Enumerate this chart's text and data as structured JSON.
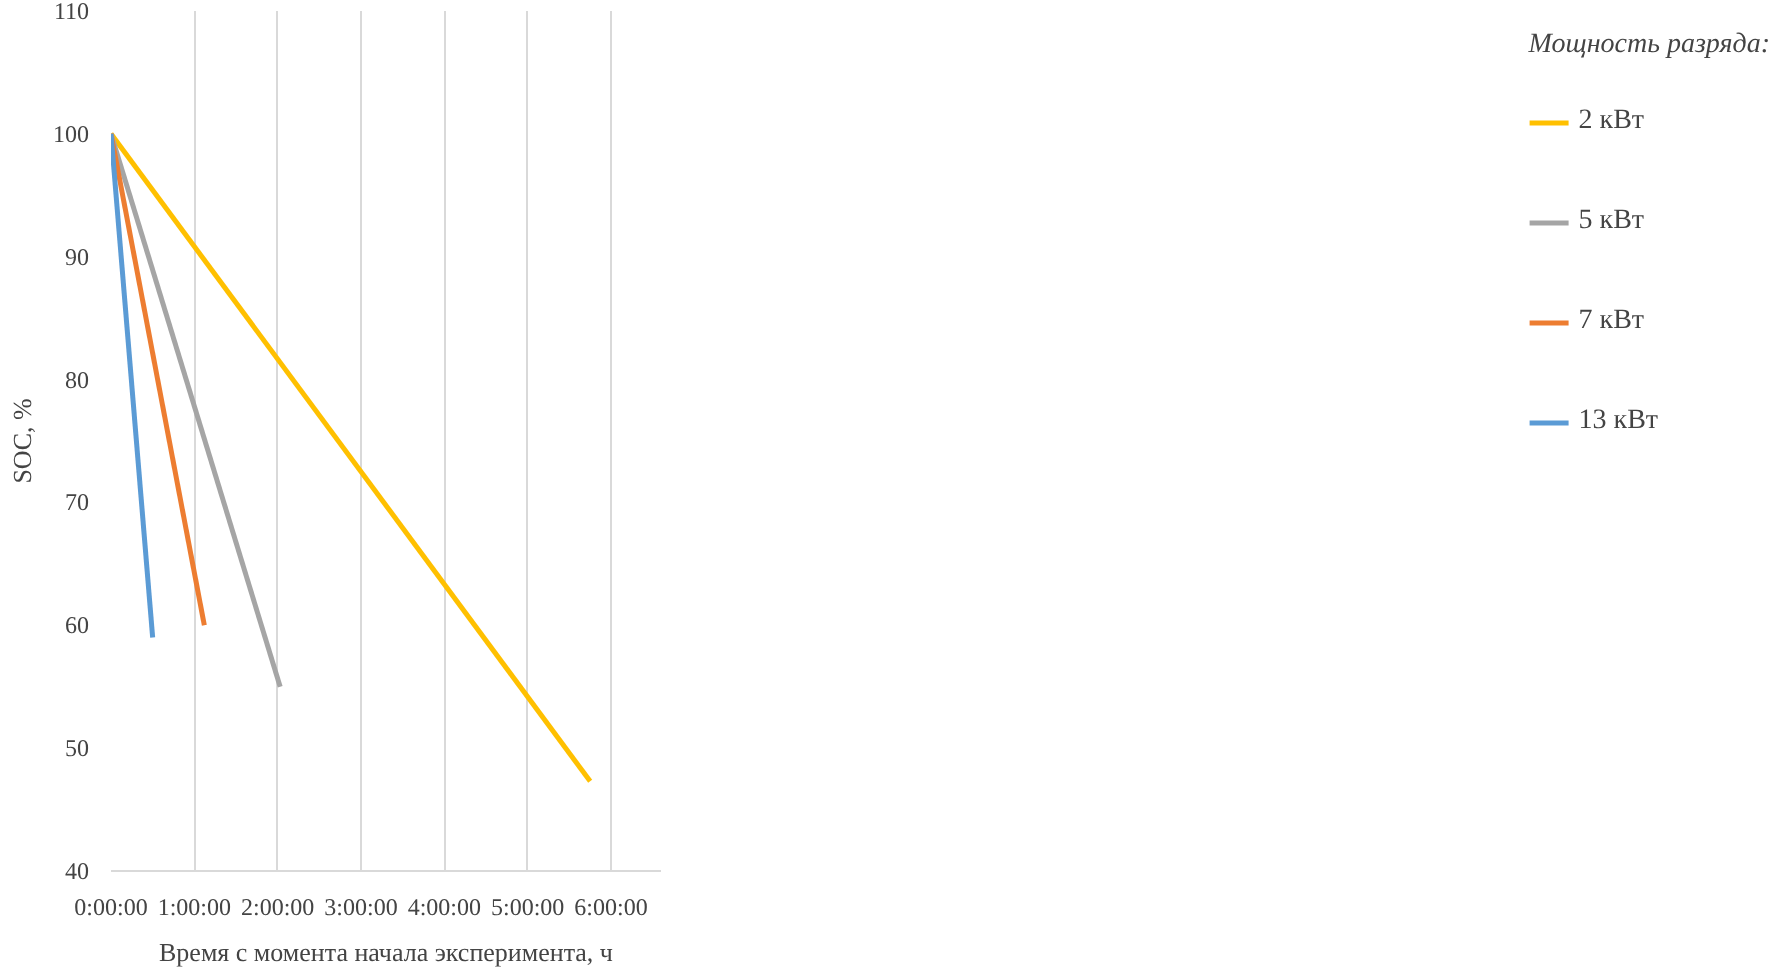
{
  "chart_data": {
    "type": "line",
    "xlabel": "Время с момента начала эксперимента, ч",
    "ylabel": "SOC, %",
    "legend_title": "Мощность разряда:",
    "series": [
      {
        "name": "2 кВт",
        "color": "#ffc000",
        "x": [
          0,
          5.75
        ],
        "values": [
          100,
          47.3
        ]
      },
      {
        "name": "5 кВт",
        "color": "#a5a5a5",
        "x": [
          0,
          2.03
        ],
        "values": [
          100,
          55
        ]
      },
      {
        "name": "7 кВт",
        "color": "#ed7d31",
        "x": [
          0,
          1.12
        ],
        "values": [
          100,
          60
        ]
      },
      {
        "name": "13 кВт",
        "color": "#5b9bd5",
        "x": [
          0,
          0.5
        ],
        "values": [
          100,
          59
        ]
      }
    ],
    "xlim": [
      0,
      6.6
    ],
    "ylim": [
      40,
      110
    ],
    "xticks": [
      {
        "value": 0,
        "label": "0:00:00"
      },
      {
        "value": 1,
        "label": "1:00:00"
      },
      {
        "value": 2,
        "label": "2:00:00"
      },
      {
        "value": 3,
        "label": "3:00:00"
      },
      {
        "value": 4,
        "label": "4:00:00"
      },
      {
        "value": 5,
        "label": "5:00:00"
      },
      {
        "value": 6,
        "label": "6:00:00"
      }
    ],
    "yticks": [
      40,
      50,
      60,
      70,
      80,
      90,
      100,
      110
    ],
    "grid": "x",
    "legend": "right",
    "marker": "none",
    "line_style": "solid"
  }
}
